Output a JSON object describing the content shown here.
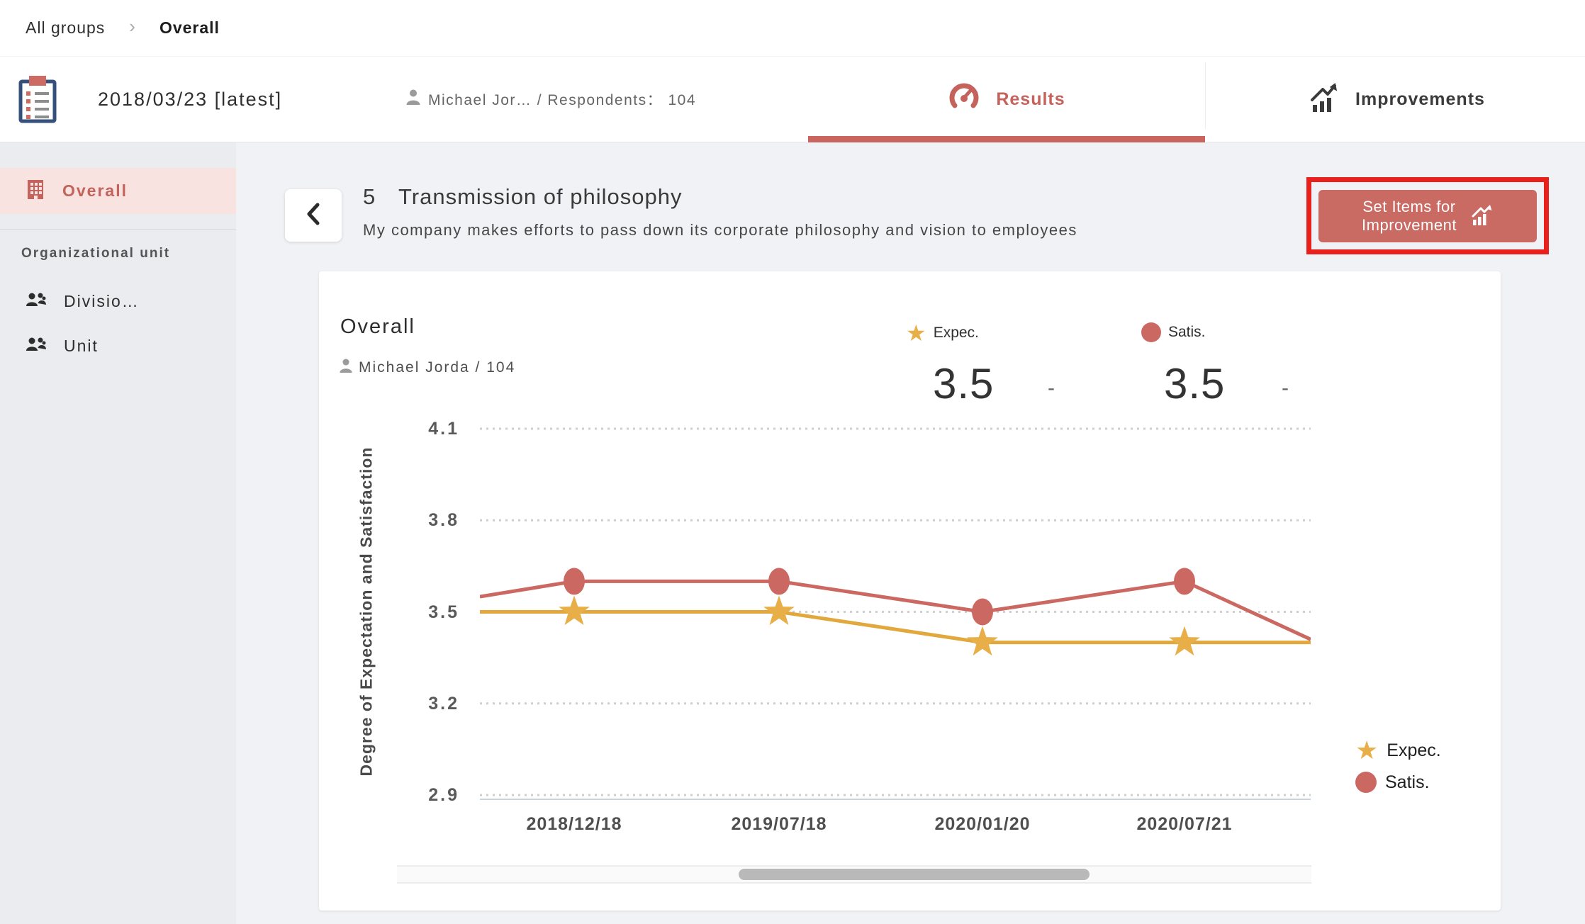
{
  "breadcrumb": {
    "root": "All groups",
    "separator": "›",
    "current": "Overall"
  },
  "header": {
    "date": "2018/03/23 [latest]",
    "meta": "Michael Jor… / Respondents： 104",
    "tabs": [
      {
        "label": "Results",
        "active": true
      },
      {
        "label": "Improvements",
        "active": false
      }
    ]
  },
  "sidebar": {
    "overall_label": "Overall",
    "section_label": "Organizational unit",
    "items": [
      {
        "label": "Divisio…"
      },
      {
        "label": "Unit"
      }
    ]
  },
  "main": {
    "question_number": "5",
    "question_title": "Transmission of philosophy",
    "question_description": "My company makes efforts to pass down its corporate philosophy and vision to employees",
    "set_items_button": {
      "line1": "Set Items for",
      "line2": "Improvement"
    }
  },
  "card": {
    "title": "Overall",
    "subtitle": "Michael Jorda / 104",
    "stats": [
      {
        "marker": "star",
        "label": "Expec.",
        "value": "3.5",
        "delta": "-"
      },
      {
        "marker": "circle",
        "label": "Satis.",
        "value": "3.5",
        "delta": "-"
      }
    ]
  },
  "chart_data": {
    "type": "line",
    "title": "Overall",
    "categories": [
      "2018/12/18",
      "2019/07/18",
      "2020/01/20",
      "2020/07/21"
    ],
    "series": [
      {
        "name": "Expec.",
        "marker": "star",
        "color": "#e2a83d",
        "marker_color": "#e8ae47",
        "values": [
          3.5,
          3.5,
          3.4,
          3.4
        ],
        "edge_left": 3.5,
        "edge_right": 3.4
      },
      {
        "name": "Satis.",
        "marker": "circle",
        "color": "#cb6862",
        "marker_color": "#cb6862",
        "values": [
          3.6,
          3.6,
          3.5,
          3.6
        ],
        "edge_left": 3.55,
        "edge_right": 3.41
      }
    ],
    "ylabel": "Degree of Expectation and Satisfaction",
    "yticks": [
      4.1,
      3.8,
      3.5,
      3.2,
      2.9
    ],
    "ylim": [
      2.9,
      4.1
    ],
    "grid": "dotted-horizontal",
    "legend_position": "bottom-right",
    "horizontally_scrollable": true
  },
  "colors": {
    "brand_red": "#c5625c",
    "chart_red": "#cb6862",
    "chart_yellow": "#e2a83d",
    "star_yellow": "#e8ae47",
    "active_pink": "#f8e3e1",
    "annotation_red": "#e8211d",
    "button_red": "#c96a63",
    "page_bg": "#f1f2f6",
    "sidebar_bg": "#ebecf0"
  }
}
